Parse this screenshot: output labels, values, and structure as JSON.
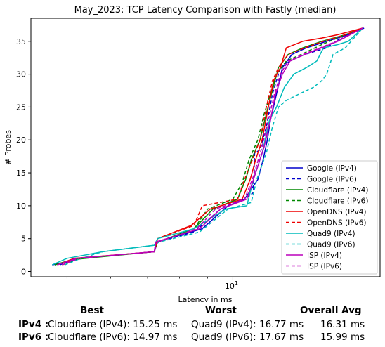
{
  "chart_data": {
    "type": "line",
    "title": "May_2023: TCP Latency Comparison with Fastly (median)",
    "xlabel": "Latency in ms",
    "ylabel": "# Probes",
    "xscale": "log",
    "xlim": [
      4.3,
      18.5
    ],
    "ylim": [
      -0.8,
      38.5
    ],
    "yticks": [
      0,
      5,
      10,
      15,
      20,
      25,
      30,
      35
    ],
    "xtick_labels": [
      {
        "value": 10,
        "label": "10^1"
      }
    ],
    "grid": false,
    "legend": "lower-right",
    "series": [
      {
        "name": "Google (IPv4)",
        "color": "#0000cc",
        "dash": false,
        "x": [
          4.7,
          5.0,
          5.3,
          7.2,
          7.25,
          8.8,
          9.8,
          10.5,
          11.1,
          11.35,
          11.55,
          11.7,
          12.0,
          12.3,
          12.8,
          13.6,
          14.8,
          16.2,
          17.3
        ],
        "y": [
          1,
          1.5,
          2,
          3,
          4.5,
          6.5,
          10,
          11,
          14,
          17,
          20,
          23,
          27,
          31,
          33,
          34,
          35,
          36,
          37
        ]
      },
      {
        "name": "Google (IPv6)",
        "color": "#0000cc",
        "dash": true,
        "x": [
          4.85,
          5.2,
          7.2,
          7.3,
          8.5,
          9.5,
          10.5,
          10.9,
          10.95,
          11.2,
          11.5,
          11.8,
          12.2,
          12.7,
          13.5,
          14.8,
          16.0,
          17.2
        ],
        "y": [
          1,
          2,
          3,
          4.5,
          6,
          9.5,
          11,
          12,
          18,
          18.5,
          22,
          27,
          31,
          32,
          33,
          34,
          36,
          37
        ]
      },
      {
        "name": "Cloudflare (IPv4)",
        "color": "#008800",
        "dash": false,
        "x": [
          4.75,
          5.1,
          7.2,
          7.3,
          8.5,
          9.2,
          10.2,
          10.55,
          10.8,
          11.2,
          11.5,
          11.75,
          12.1,
          12.6,
          13.4,
          14.5,
          16.0,
          17.2
        ],
        "y": [
          1,
          1.8,
          3,
          4.5,
          6.5,
          9.5,
          11,
          14,
          17,
          20,
          24,
          27,
          31,
          33,
          34,
          35,
          36,
          37
        ]
      },
      {
        "name": "Cloudflare (IPv6)",
        "color": "#008800",
        "dash": true,
        "x": [
          4.95,
          5.25,
          7.2,
          7.3,
          8.5,
          9.0,
          10.0,
          10.4,
          10.7,
          11.1,
          11.4,
          11.7,
          12.0,
          12.5,
          13.3,
          14.5,
          16.0,
          17.2
        ],
        "y": [
          1,
          2,
          3,
          4.5,
          6.5,
          9.5,
          11,
          13.5,
          17,
          20,
          24,
          27,
          30,
          32,
          33,
          34.5,
          36,
          37
        ]
      },
      {
        "name": "OpenDNS (IPv4)",
        "color": "#ee0000",
        "dash": false,
        "x": [
          4.8,
          5.15,
          7.2,
          7.3,
          8.4,
          9.1,
          10.4,
          10.75,
          11.0,
          11.3,
          11.6,
          11.85,
          12.2,
          12.5,
          13.4,
          14.5,
          15.5,
          17.2
        ],
        "y": [
          1,
          2,
          3,
          5,
          7,
          9.5,
          11,
          14,
          17,
          20,
          25,
          29,
          31,
          34,
          35,
          35.5,
          36,
          37
        ]
      },
      {
        "name": "OpenDNS (IPv6)",
        "color": "#ee0000",
        "dash": true,
        "x": [
          4.9,
          5.2,
          7.2,
          7.3,
          8.5,
          8.8,
          10.2,
          10.5,
          10.85,
          11.2,
          11.5,
          11.8,
          12.1,
          12.6,
          13.5,
          14.6,
          16.0,
          17.2
        ],
        "y": [
          1,
          2,
          3,
          5,
          7,
          10,
          11,
          14,
          17,
          20,
          25,
          29,
          31,
          33,
          34,
          35,
          36,
          37
        ]
      },
      {
        "name": "Quad9 (IPv4)",
        "color": "#00bbbb",
        "dash": false,
        "x": [
          4.7,
          5.0,
          5.8,
          7.2,
          7.3,
          8.5,
          9.7,
          10.6,
          10.9,
          11.3,
          11.65,
          12.0,
          12.4,
          12.9,
          13.6,
          14.2,
          14.6,
          15.5,
          16.2,
          17.2
        ],
        "y": [
          1,
          2,
          3,
          4,
          5,
          6.5,
          9.5,
          10,
          14,
          18,
          23,
          25,
          28,
          30,
          31,
          32,
          34,
          34.5,
          35,
          37
        ]
      },
      {
        "name": "Quad9 (IPv6)",
        "color": "#00bbbb",
        "dash": true,
        "x": [
          4.95,
          5.3,
          5.8,
          7.2,
          7.35,
          8.7,
          9.8,
          10.8,
          11.05,
          11.5,
          11.8,
          12.1,
          12.5,
          13.2,
          14.0,
          14.5,
          14.8,
          15.2,
          16.0,
          17.2
        ],
        "y": [
          1,
          2,
          3,
          4,
          4.5,
          6,
          9.5,
          10.5,
          14,
          18,
          22,
          25,
          26,
          27,
          28,
          29,
          30,
          33,
          34,
          37
        ]
      },
      {
        "name": "ISP (IPv4)",
        "color": "#bb00bb",
        "dash": false,
        "x": [
          4.8,
          5.2,
          7.2,
          7.25,
          8.7,
          9.5,
          10.6,
          11.0,
          11.4,
          11.7,
          11.95,
          12.3,
          12.7,
          13.5,
          14.5,
          15.5,
          17.2
        ],
        "y": [
          1,
          2,
          3,
          4.5,
          6.5,
          9.5,
          11,
          15,
          19,
          23,
          27,
          30,
          32,
          33,
          34,
          35,
          37
        ]
      },
      {
        "name": "ISP (IPv6)",
        "color": "#bb00bb",
        "dash": true,
        "x": [
          4.9,
          5.25,
          7.2,
          7.3,
          8.6,
          9.3,
          10.5,
          10.9,
          11.3,
          11.6,
          11.9,
          12.2,
          12.6,
          13.4,
          14.4,
          15.4,
          17.2
        ],
        "y": [
          1,
          2,
          3,
          4.5,
          6.5,
          9.5,
          11,
          14.5,
          19,
          23,
          27,
          30,
          32,
          33,
          34,
          35,
          37
        ]
      }
    ]
  },
  "summary": {
    "headers": {
      "best": "Best",
      "worst": "Worst",
      "avg": "Overall Avg"
    },
    "rows": [
      {
        "label": "IPv4 :",
        "best": "Cloudflare (IPv4): 15.25 ms",
        "worst": "Quad9 (IPv4): 16.77 ms",
        "avg": "16.31 ms"
      },
      {
        "label": "IPv6 :",
        "best": "Cloudflare (IPv6): 14.97 ms",
        "worst": "Quad9 (IPv6): 17.67 ms",
        "avg": "15.99 ms"
      }
    ]
  }
}
